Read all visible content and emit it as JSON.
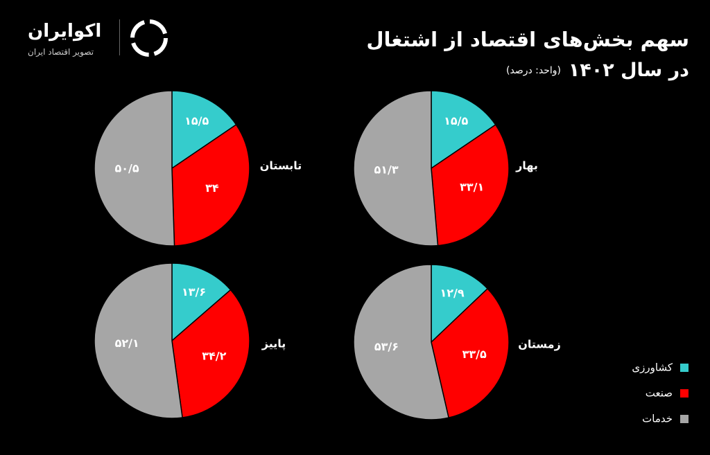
{
  "header": {
    "title": "سهم بخش‌های اقتصاد از اشتغال",
    "year": "در سال ۱۴۰۲",
    "unit": "(واحد: درصد)"
  },
  "logo": {
    "name": "اکوایران",
    "tagline": "تصویر اقتصاد ایران"
  },
  "legend": {
    "categories": [
      "کشاورزی",
      "صنعت",
      "خدمات"
    ],
    "colors": [
      "#35cccc",
      "#ff0000",
      "#a6a6a6"
    ]
  },
  "chart_data": [
    {
      "type": "pie",
      "title": "بهار",
      "values": [
        15.5,
        33.1,
        51.3
      ],
      "value_labels": [
        "۱۵/۵",
        "۳۳/۱",
        "۵۱/۳"
      ]
    },
    {
      "type": "pie",
      "title": "تابستان",
      "values": [
        15.5,
        34,
        50.5
      ],
      "value_labels": [
        "۱۵/۵",
        "۳۴",
        "۵۰/۵"
      ]
    },
    {
      "type": "pie",
      "title": "پاییز",
      "values": [
        13.6,
        34.2,
        52.1
      ],
      "value_labels": [
        "۱۳/۶",
        "۳۴/۲",
        "۵۲/۱"
      ]
    },
    {
      "type": "pie",
      "title": "زمستان",
      "values": [
        12.9,
        33.5,
        53.6
      ],
      "value_labels": [
        "۱۲/۹",
        "۳۳/۵",
        "۵۳/۶"
      ]
    }
  ]
}
